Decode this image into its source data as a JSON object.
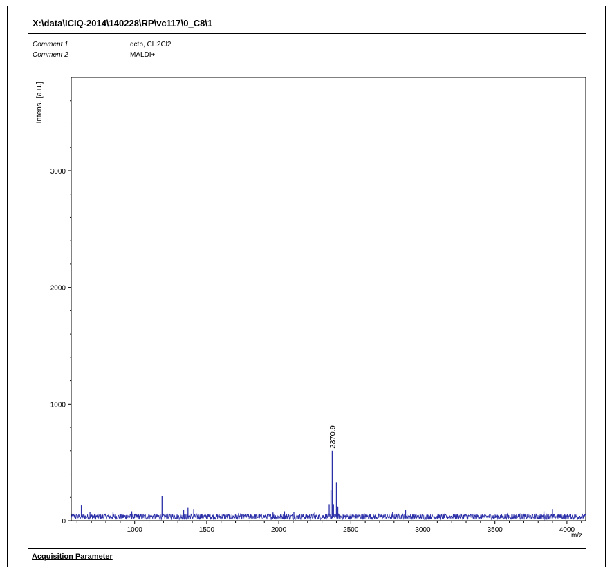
{
  "header": {
    "title": "X:\\data\\ICIQ-2014\\140228\\RP\\vc117\\0_C8\\1",
    "comments": [
      {
        "label": "Comment 1",
        "value": "dctb, CH2Cl2"
      },
      {
        "label": "Comment 2",
        "value": "MALDI+"
      }
    ]
  },
  "footer": {
    "section_title": "Acquisition Parameter"
  },
  "colors": {
    "spectrum": "#2b2fa8",
    "axis": "#000000"
  },
  "chart_data": {
    "type": "line",
    "xlabel": "m/z",
    "ylabel": "Intens. [a.u.]",
    "xlim": [
      560,
      4130
    ],
    "ylim": [
      0,
      3800
    ],
    "x_ticks": [
      1000,
      1500,
      2000,
      2500,
      3000,
      3500,
      4000
    ],
    "y_ticks": [
      0,
      1000,
      2000,
      3000
    ],
    "baseline": 35,
    "noise_amplitude": 25,
    "peaks": [
      {
        "x": 630,
        "y": 130
      },
      {
        "x": 690,
        "y": 75
      },
      {
        "x": 850,
        "y": 70
      },
      {
        "x": 980,
        "y": 80
      },
      {
        "x": 1190,
        "y": 210
      },
      {
        "x": 1340,
        "y": 90
      },
      {
        "x": 1370,
        "y": 115
      },
      {
        "x": 1410,
        "y": 100
      },
      {
        "x": 1960,
        "y": 70
      },
      {
        "x": 2040,
        "y": 80
      },
      {
        "x": 2105,
        "y": 75
      },
      {
        "x": 2250,
        "y": 70
      },
      {
        "x": 2350,
        "y": 140
      },
      {
        "x": 2362,
        "y": 260
      },
      {
        "x": 2370.9,
        "y": 600
      },
      {
        "x": 2380,
        "y": 140
      },
      {
        "x": 2400,
        "y": 330
      },
      {
        "x": 2410,
        "y": 120
      },
      {
        "x": 2790,
        "y": 75
      },
      {
        "x": 2880,
        "y": 95
      },
      {
        "x": 3840,
        "y": 80
      },
      {
        "x": 3900,
        "y": 100
      }
    ],
    "annotations": [
      {
        "x": 2370.9,
        "y": 600,
        "text": "2370.9"
      }
    ]
  }
}
